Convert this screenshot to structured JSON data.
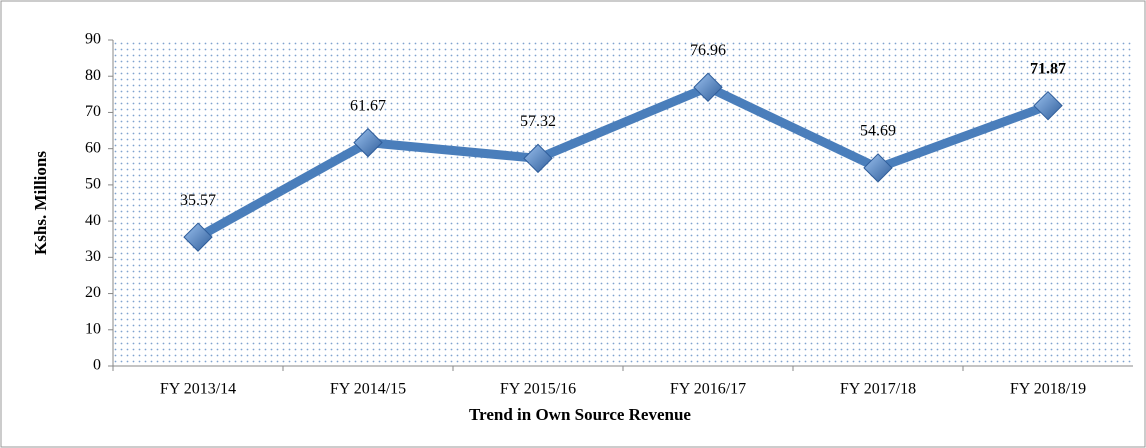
{
  "chart_data": {
    "type": "line",
    "x_label": "Trend in Own Source Revenue",
    "y_label": "Kshs. Millions",
    "categories": [
      "FY 2013/14",
      "FY 2014/15",
      "FY 2015/16",
      "FY 2016/17",
      "FY 2017/18",
      "FY 2018/19"
    ],
    "series": [
      {
        "name": "Own Source Revenue",
        "color": "#4a7ebb",
        "values": [
          35.57,
          61.67,
          57.32,
          76.96,
          54.69,
          71.87
        ]
      }
    ],
    "ylim": [
      0,
      90
    ],
    "yticks": [
      0,
      10,
      20,
      30,
      40,
      50,
      60,
      70,
      80,
      90
    ]
  }
}
